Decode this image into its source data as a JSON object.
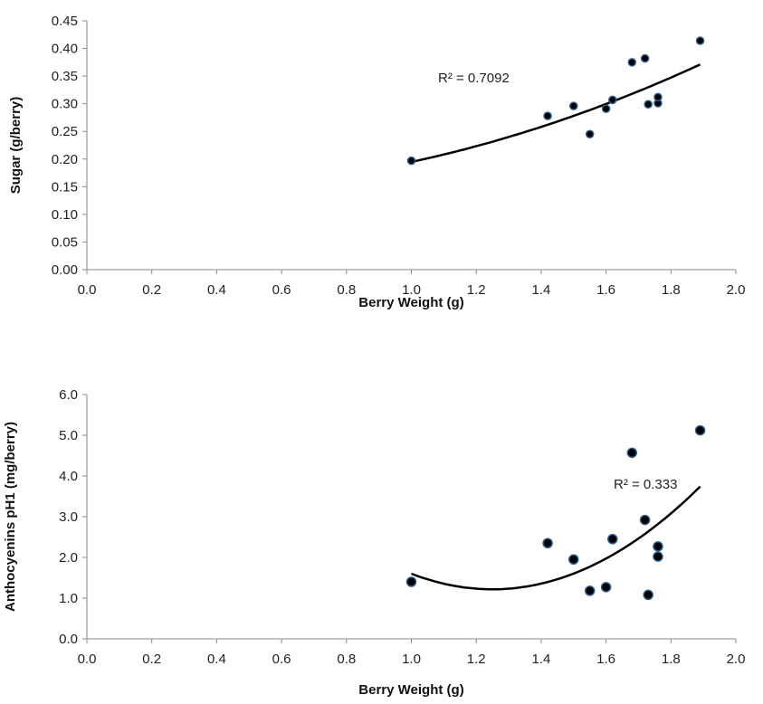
{
  "chart_data": [
    {
      "type": "scatter",
      "xlabel": "Berry Weight (g)",
      "ylabel": "Sugar (g/berry)",
      "xlim": [
        0.0,
        2.0
      ],
      "ylim": [
        0.0,
        0.45
      ],
      "x_ticks": [
        "0.0",
        "0.2",
        "0.4",
        "0.6",
        "0.8",
        "1.0",
        "1.2",
        "1.4",
        "1.6",
        "1.8",
        "2.0"
      ],
      "y_ticks": [
        "0.00",
        "0.05",
        "0.10",
        "0.15",
        "0.20",
        "0.25",
        "0.30",
        "0.35",
        "0.40",
        "0.45"
      ],
      "grid": false,
      "points": [
        {
          "x": 1.0,
          "y": 0.197
        },
        {
          "x": 1.42,
          "y": 0.278
        },
        {
          "x": 1.5,
          "y": 0.296
        },
        {
          "x": 1.55,
          "y": 0.245
        },
        {
          "x": 1.6,
          "y": 0.291
        },
        {
          "x": 1.62,
          "y": 0.307
        },
        {
          "x": 1.68,
          "y": 0.375
        },
        {
          "x": 1.72,
          "y": 0.382
        },
        {
          "x": 1.73,
          "y": 0.299
        },
        {
          "x": 1.76,
          "y": 0.301
        },
        {
          "x": 1.76,
          "y": 0.312
        },
        {
          "x": 1.89,
          "y": 0.414
        }
      ],
      "trendline": {
        "type": "polynomial",
        "x_range": [
          1.0,
          1.89
        ],
        "coefficients": [
          0.0805,
          -0.0347,
          0.149
        ]
      },
      "annotation": "R² = 0.7092"
    },
    {
      "type": "scatter",
      "xlabel": "Berry Weight (g)",
      "ylabel": "Anthocyenins pH1 (mg/berry)",
      "xlim": [
        0.0,
        2.0
      ],
      "ylim": [
        0.0,
        6.0
      ],
      "x_ticks": [
        "0.0",
        "0.2",
        "0.4",
        "0.6",
        "0.8",
        "1.0",
        "1.2",
        "1.4",
        "1.6",
        "1.8",
        "2.0"
      ],
      "y_ticks": [
        "0.0",
        "1.0",
        "2.0",
        "3.0",
        "4.0",
        "5.0",
        "6.0"
      ],
      "grid": false,
      "points": [
        {
          "x": 1.0,
          "y": 1.4
        },
        {
          "x": 1.42,
          "y": 2.35
        },
        {
          "x": 1.5,
          "y": 1.95
        },
        {
          "x": 1.55,
          "y": 1.18
        },
        {
          "x": 1.6,
          "y": 1.27
        },
        {
          "x": 1.62,
          "y": 2.45
        },
        {
          "x": 1.68,
          "y": 4.57
        },
        {
          "x": 1.72,
          "y": 2.92
        },
        {
          "x": 1.73,
          "y": 1.08
        },
        {
          "x": 1.76,
          "y": 2.02
        },
        {
          "x": 1.76,
          "y": 2.27
        },
        {
          "x": 1.89,
          "y": 5.12
        }
      ],
      "trendline": {
        "type": "polynomial",
        "x_range": [
          1.0,
          1.89
        ],
        "coefficients": [
          6.15,
          -15.37,
          10.82
        ]
      },
      "annotation": "R² = 0.333"
    }
  ]
}
